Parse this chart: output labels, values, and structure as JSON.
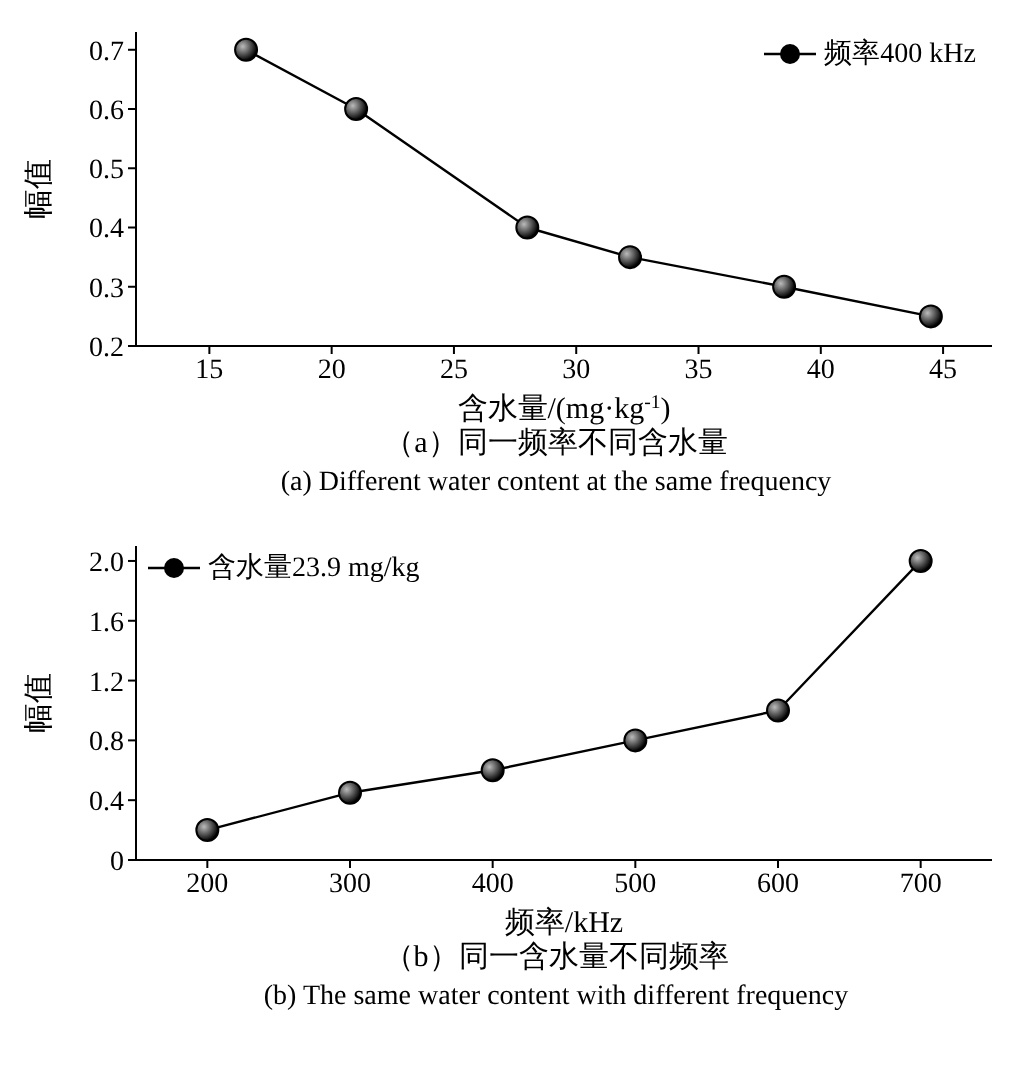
{
  "chart_data": [
    {
      "type": "line",
      "xlabel": "含水量/(mg·kg$^{-1}$)",
      "ylabel": "幅值",
      "x": [
        16.5,
        21,
        28,
        32.2,
        38.5,
        44.5
      ],
      "series": [
        {
          "name": "频率400 kHz",
          "color": "#000000",
          "values": [
            0.7,
            0.6,
            0.4,
            0.35,
            0.3,
            0.25
          ]
        }
      ],
      "xlim": [
        12,
        47
      ],
      "xticks": [
        15,
        20,
        25,
        30,
        35,
        40,
        45
      ],
      "ylim": [
        0.2,
        0.73
      ],
      "yticks": [
        0.2,
        0.3,
        0.4,
        0.5,
        0.6,
        0.7
      ],
      "marker": "circle",
      "line_style": "solid",
      "legend": "top right",
      "grid": false,
      "annotations": [
        "（a）同一频率不同含水量",
        "(a) Different water content at the same frequency"
      ]
    },
    {
      "type": "line",
      "xlabel": "频率/kHz",
      "ylabel": "幅值",
      "x": [
        200,
        300,
        400,
        500,
        600,
        700
      ],
      "series": [
        {
          "name": "含水量23.9 mg/kg",
          "color": "#000000",
          "values": [
            0.2,
            0.45,
            0.6,
            0.8,
            1.0,
            2.0
          ]
        }
      ],
      "xlim": [
        150,
        750
      ],
      "xticks": [
        200,
        300,
        400,
        500,
        600,
        700
      ],
      "ylim": [
        0,
        2.1
      ],
      "yticks": [
        0,
        0.4,
        0.8,
        1.2,
        1.6,
        {
          "value": 2,
          "label": "2.0"
        }
      ],
      "marker": "circle",
      "line_style": "solid",
      "legend": "top left",
      "grid": false,
      "annotations": [
        "（b）同一含水量不同频率",
        "(b) The same water content with different frequency"
      ]
    }
  ]
}
